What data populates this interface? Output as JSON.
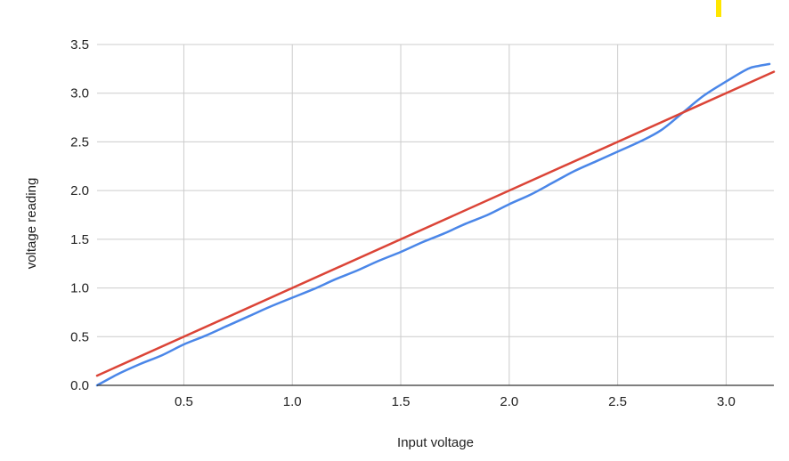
{
  "chart_data": {
    "type": "line",
    "title": "",
    "xlabel": "Input voltage",
    "ylabel": "voltage reading",
    "xlim": [
      0.1,
      3.22
    ],
    "ylim": [
      0,
      3.5
    ],
    "grid": true,
    "x_ticks": [
      0.5,
      1.0,
      1.5,
      2.0,
      2.5,
      3.0
    ],
    "x_tick_labels": [
      "0.5",
      "1.0",
      "1.5",
      "2.0",
      "2.5",
      "3.0"
    ],
    "y_ticks": [
      0,
      0.5,
      1.0,
      1.5,
      2.0,
      2.5,
      3.0,
      3.5
    ],
    "y_tick_labels": [
      "0.0",
      "0.5",
      "1.0",
      "1.5",
      "2.0",
      "2.5",
      "3.0",
      "3.5"
    ],
    "series": [
      {
        "color": "#4a86e8",
        "x": [
          0.1,
          0.2,
          0.3,
          0.4,
          0.5,
          0.6,
          0.7,
          0.8,
          0.9,
          1.0,
          1.1,
          1.2,
          1.3,
          1.4,
          1.5,
          1.6,
          1.7,
          1.8,
          1.9,
          2.0,
          2.1,
          2.2,
          2.3,
          2.4,
          2.5,
          2.6,
          2.7,
          2.8,
          2.9,
          3.0,
          3.1,
          3.15,
          3.2
        ],
        "values": [
          0.0,
          0.12,
          0.22,
          0.31,
          0.42,
          0.51,
          0.61,
          0.71,
          0.81,
          0.9,
          0.99,
          1.09,
          1.18,
          1.28,
          1.37,
          1.47,
          1.56,
          1.66,
          1.75,
          1.86,
          1.96,
          2.08,
          2.2,
          2.3,
          2.4,
          2.5,
          2.62,
          2.8,
          2.98,
          3.12,
          3.25,
          3.28,
          3.3
        ]
      },
      {
        "color": "#db4437",
        "x": [
          0.1,
          3.22
        ],
        "values": [
          0.1,
          3.22
        ]
      }
    ]
  },
  "marker": {
    "color": "#ffe600"
  }
}
